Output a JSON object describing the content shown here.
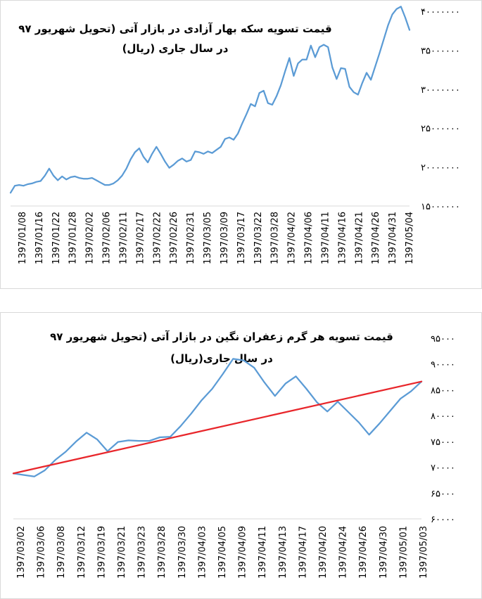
{
  "chart_data": [
    {
      "type": "line",
      "title_line1": "قیمت تسویه سکه بهار آزادی در بازار آتی (تحویل شهریور ۹۷",
      "title_line2": "در سال جاری (ریال)",
      "ylim": [
        15000000,
        40000000
      ],
      "yticks": [
        {
          "value": 40000000,
          "label": "۴۰۰۰۰۰۰۰"
        },
        {
          "value": 35000000,
          "label": "۳۵۰۰۰۰۰۰"
        },
        {
          "value": 30000000,
          "label": "۳۰۰۰۰۰۰۰"
        },
        {
          "value": 25000000,
          "label": "۲۵۰۰۰۰۰۰"
        },
        {
          "value": 20000000,
          "label": "۲۰۰۰۰۰۰۰"
        },
        {
          "value": 15000000,
          "label": "۱۵۰۰۰۰۰۰"
        }
      ],
      "xtick_labels": [
        "1397/01/08",
        "1397/01/16",
        "1397/01/22",
        "1397/01/28",
        "1397/02/02",
        "1397/02/06",
        "1397/02/11",
        "1397/02/17",
        "1397/02/22",
        "1397/02/26",
        "1397/02/31",
        "1397/03/05",
        "1397/03/09",
        "1397/03/17",
        "1397/03/22",
        "1397/03/28",
        "1397/04/02",
        "1397/04/06",
        "1397/04/11",
        "1397/04/16",
        "1397/04/21",
        "1397/04/26",
        "1397/04/31",
        "1397/05/04"
      ],
      "series": [
        {
          "color": "#5b9bd5",
          "values": [
            16700000,
            17600000,
            17700000,
            17600000,
            17800000,
            17900000,
            18100000,
            18200000,
            18900000,
            19800000,
            18900000,
            18300000,
            18800000,
            18400000,
            18700000,
            18800000,
            18600000,
            18500000,
            18500000,
            18600000,
            18300000,
            18000000,
            17700000,
            17700000,
            17900000,
            18300000,
            18900000,
            19800000,
            21000000,
            21900000,
            22400000,
            21300000,
            20600000,
            21700000,
            22600000,
            21700000,
            20700000,
            19900000,
            20300000,
            20800000,
            21100000,
            20700000,
            20900000,
            22000000,
            21900000,
            21700000,
            22000000,
            21800000,
            22200000,
            22600000,
            23600000,
            23800000,
            23500000,
            24300000,
            25600000,
            26800000,
            28100000,
            27800000,
            29500000,
            29800000,
            28200000,
            28000000,
            29100000,
            30500000,
            32300000,
            34000000,
            31700000,
            33300000,
            33800000,
            33800000,
            35600000,
            34100000,
            35400000,
            35700000,
            35400000,
            32800000,
            31300000,
            32700000,
            32600000,
            30300000,
            29600000,
            29300000,
            30800000,
            32100000,
            31200000,
            32900000,
            34600000,
            36400000,
            38200000,
            39600000,
            40300000,
            40600000,
            39200000,
            37600000
          ]
        }
      ]
    },
    {
      "type": "line",
      "title_line1": "قیمت تسویه هر گرم زعفران نگین در بازار آتی (تحویل شهریور ۹۷",
      "title_line2": "در سال جاری(ریال)",
      "ylim": [
        60000,
        95000
      ],
      "yticks": [
        {
          "value": 95000,
          "label": "۹۵۰۰۰"
        },
        {
          "value": 90000,
          "label": "۹۰۰۰۰"
        },
        {
          "value": 85000,
          "label": "۸۵۰۰۰"
        },
        {
          "value": 80000,
          "label": "۸۰۰۰۰"
        },
        {
          "value": 75000,
          "label": "۷۵۰۰۰"
        },
        {
          "value": 70000,
          "label": "۷۰۰۰۰"
        },
        {
          "value": 65000,
          "label": "۶۵۰۰۰"
        },
        {
          "value": 60000,
          "label": "۶۰۰۰۰"
        }
      ],
      "xtick_labels": [
        "1397/03/02",
        "1397/03/06",
        "1397/03/08",
        "1397/03/12",
        "1397/03/19",
        "1397/03/21",
        "1397/03/23",
        "1397/03/28",
        "1397/03/30",
        "1397/04/03",
        "1397/04/05",
        "1397/04/09",
        "1397/04/11",
        "1397/04/13",
        "1397/04/17",
        "1397/04/20",
        "1397/04/24",
        "1397/04/26",
        "1397/04/30",
        "1397/05/01",
        "1397/05/03"
      ],
      "series": [
        {
          "color": "#5b9bd5",
          "values": [
            68800,
            68500,
            68200,
            69400,
            71400,
            73000,
            75000,
            76700,
            75400,
            73100,
            74900,
            75200,
            75100,
            75100,
            75800,
            75900,
            78000,
            80400,
            83000,
            85200,
            88000,
            91000,
            90700,
            89300,
            86400,
            83800,
            86200,
            87600,
            85200,
            82600,
            80800,
            82700,
            80700,
            78700,
            76300,
            78500,
            80900,
            83300,
            84700,
            86600
          ]
        },
        {
          "color": "#e8262b",
          "values": [
            68800,
            86600
          ]
        }
      ]
    }
  ]
}
